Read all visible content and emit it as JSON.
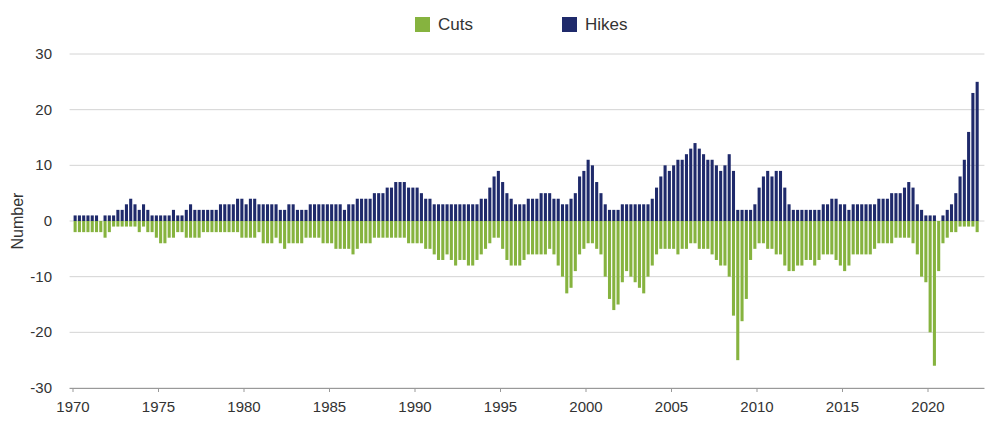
{
  "chart_data": {
    "type": "bar",
    "y_label": "Number",
    "legend": "top",
    "grid": true,
    "xlim": [
      1969.8,
      2023.3
    ],
    "xticks": [
      1970,
      1975,
      1980,
      1985,
      1990,
      1995,
      2000,
      2005,
      2010,
      2015,
      2020
    ],
    "ylim": [
      -30,
      30
    ],
    "yticks": [
      -30,
      -20,
      -10,
      0,
      10,
      20,
      30
    ],
    "x": [
      1970.125,
      1970.375,
      1970.625,
      1970.875,
      1971.125,
      1971.375,
      1971.625,
      1971.875,
      1972.125,
      1972.375,
      1972.625,
      1972.875,
      1973.125,
      1973.375,
      1973.625,
      1973.875,
      1974.125,
      1974.375,
      1974.625,
      1974.875,
      1975.125,
      1975.375,
      1975.625,
      1975.875,
      1976.125,
      1976.375,
      1976.625,
      1976.875,
      1977.125,
      1977.375,
      1977.625,
      1977.875,
      1978.125,
      1978.375,
      1978.625,
      1978.875,
      1979.125,
      1979.375,
      1979.625,
      1979.875,
      1980.125,
      1980.375,
      1980.625,
      1980.875,
      1981.125,
      1981.375,
      1981.625,
      1981.875,
      1982.125,
      1982.375,
      1982.625,
      1982.875,
      1983.125,
      1983.375,
      1983.625,
      1983.875,
      1984.125,
      1984.375,
      1984.625,
      1984.875,
      1985.125,
      1985.375,
      1985.625,
      1985.875,
      1986.125,
      1986.375,
      1986.625,
      1986.875,
      1987.125,
      1987.375,
      1987.625,
      1987.875,
      1988.125,
      1988.375,
      1988.625,
      1988.875,
      1989.125,
      1989.375,
      1989.625,
      1989.875,
      1990.125,
      1990.375,
      1990.625,
      1990.875,
      1991.125,
      1991.375,
      1991.625,
      1991.875,
      1992.125,
      1992.375,
      1992.625,
      1992.875,
      1993.125,
      1993.375,
      1993.625,
      1993.875,
      1994.125,
      1994.375,
      1994.625,
      1994.875,
      1995.125,
      1995.375,
      1995.625,
      1995.875,
      1996.125,
      1996.375,
      1996.625,
      1996.875,
      1997.125,
      1997.375,
      1997.625,
      1997.875,
      1998.125,
      1998.375,
      1998.625,
      1998.875,
      1999.125,
      1999.375,
      1999.625,
      1999.875,
      2000.125,
      2000.375,
      2000.625,
      2000.875,
      2001.125,
      2001.375,
      2001.625,
      2001.875,
      2002.125,
      2002.375,
      2002.625,
      2002.875,
      2003.125,
      2003.375,
      2003.625,
      2003.875,
      2004.125,
      2004.375,
      2004.625,
      2004.875,
      2005.125,
      2005.375,
      2005.625,
      2005.875,
      2006.125,
      2006.375,
      2006.625,
      2006.875,
      2007.125,
      2007.375,
      2007.625,
      2007.875,
      2008.125,
      2008.375,
      2008.625,
      2008.875,
      2009.125,
      2009.375,
      2009.625,
      2009.875,
      2010.125,
      2010.375,
      2010.625,
      2010.875,
      2011.125,
      2011.375,
      2011.625,
      2011.875,
      2012.125,
      2012.375,
      2012.625,
      2012.875,
      2013.125,
      2013.375,
      2013.625,
      2013.875,
      2014.125,
      2014.375,
      2014.625,
      2014.875,
      2015.125,
      2015.375,
      2015.625,
      2015.875,
      2016.125,
      2016.375,
      2016.625,
      2016.875,
      2017.125,
      2017.375,
      2017.625,
      2017.875,
      2018.125,
      2018.375,
      2018.625,
      2018.875,
      2019.125,
      2019.375,
      2019.625,
      2019.875,
      2020.125,
      2020.375,
      2020.625,
      2020.875,
      2021.125,
      2021.375,
      2021.625,
      2021.875,
      2022.125,
      2022.375,
      2022.625,
      2022.875
    ],
    "series": [
      {
        "name": "Cuts",
        "color": "#86b33f",
        "values": [
          -2,
          -2,
          -2,
          -2,
          -2,
          -2,
          -2,
          -3,
          -2,
          -1,
          -1,
          -1,
          -1,
          -1,
          -1,
          -2,
          -1,
          -2,
          -2,
          -3,
          -4,
          -4,
          -3,
          -3,
          -2,
          -2,
          -3,
          -3,
          -3,
          -3,
          -2,
          -2,
          -2,
          -2,
          -2,
          -2,
          -2,
          -2,
          -2,
          -3,
          -3,
          -3,
          -3,
          -2,
          -4,
          -4,
          -4,
          -3,
          -4,
          -5,
          -4,
          -4,
          -4,
          -4,
          -3,
          -3,
          -3,
          -3,
          -4,
          -4,
          -4,
          -5,
          -5,
          -5,
          -5,
          -6,
          -5,
          -4,
          -4,
          -4,
          -3,
          -3,
          -3,
          -3,
          -3,
          -3,
          -3,
          -3,
          -4,
          -4,
          -4,
          -4,
          -5,
          -5,
          -6,
          -7,
          -7,
          -6,
          -7,
          -8,
          -7,
          -7,
          -8,
          -8,
          -7,
          -6,
          -5,
          -4,
          -3,
          -3,
          -5,
          -7,
          -8,
          -8,
          -8,
          -7,
          -6,
          -6,
          -6,
          -6,
          -6,
          -5,
          -6,
          -8,
          -10,
          -13,
          -12,
          -9,
          -6,
          -5,
          -4,
          -4,
          -5,
          -6,
          -10,
          -14,
          -16,
          -15,
          -11,
          -9,
          -10,
          -11,
          -12,
          -13,
          -10,
          -8,
          -6,
          -5,
          -5,
          -5,
          -5,
          -6,
          -5,
          -5,
          -4,
          -4,
          -5,
          -5,
          -5,
          -6,
          -7,
          -8,
          -8,
          -10,
          -17,
          -25,
          -18,
          -14,
          -7,
          -5,
          -4,
          -4,
          -5,
          -5,
          -6,
          -6,
          -8,
          -9,
          -9,
          -8,
          -8,
          -7,
          -7,
          -8,
          -7,
          -6,
          -6,
          -6,
          -7,
          -8,
          -9,
          -8,
          -6,
          -6,
          -6,
          -6,
          -6,
          -5,
          -4,
          -4,
          -4,
          -4,
          -3,
          -3,
          -3,
          -3,
          -4,
          -6,
          -10,
          -11,
          -20,
          -26,
          -9,
          -4,
          -3,
          -2,
          -2,
          -1,
          -1,
          -1,
          -1,
          -2
        ]
      },
      {
        "name": "Hikes",
        "color": "#1f2a6b",
        "values": [
          1,
          1,
          1,
          1,
          1,
          1,
          0,
          1,
          1,
          1,
          2,
          2,
          3,
          4,
          3,
          2,
          3,
          2,
          1,
          1,
          1,
          1,
          1,
          2,
          1,
          1,
          2,
          3,
          2,
          2,
          2,
          2,
          2,
          2,
          3,
          3,
          3,
          3,
          4,
          4,
          3,
          4,
          4,
          3,
          3,
          3,
          3,
          3,
          2,
          2,
          3,
          3,
          2,
          2,
          2,
          3,
          3,
          3,
          3,
          3,
          3,
          3,
          3,
          2,
          3,
          3,
          4,
          4,
          4,
          4,
          5,
          5,
          5,
          6,
          6,
          7,
          7,
          7,
          6,
          6,
          6,
          5,
          4,
          4,
          3,
          3,
          3,
          3,
          3,
          3,
          3,
          3,
          3,
          3,
          3,
          4,
          4,
          6,
          8,
          9,
          7,
          5,
          4,
          3,
          3,
          3,
          4,
          4,
          4,
          5,
          5,
          5,
          4,
          4,
          3,
          3,
          4,
          5,
          8,
          9,
          11,
          10,
          7,
          5,
          3,
          2,
          2,
          2,
          3,
          3,
          3,
          3,
          3,
          3,
          3,
          4,
          6,
          8,
          10,
          9,
          10,
          11,
          11,
          12,
          13,
          14,
          13,
          12,
          11,
          11,
          10,
          9,
          10,
          12,
          9,
          2,
          2,
          2,
          2,
          3,
          6,
          8,
          9,
          8,
          9,
          9,
          6,
          3,
          2,
          2,
          2,
          2,
          2,
          2,
          2,
          3,
          3,
          4,
          4,
          3,
          3,
          2,
          3,
          3,
          3,
          3,
          3,
          3,
          4,
          4,
          4,
          5,
          5,
          5,
          6,
          7,
          6,
          3,
          2,
          1,
          1,
          1,
          0,
          1,
          2,
          3,
          5,
          8,
          11,
          16,
          23,
          25
        ]
      }
    ]
  }
}
